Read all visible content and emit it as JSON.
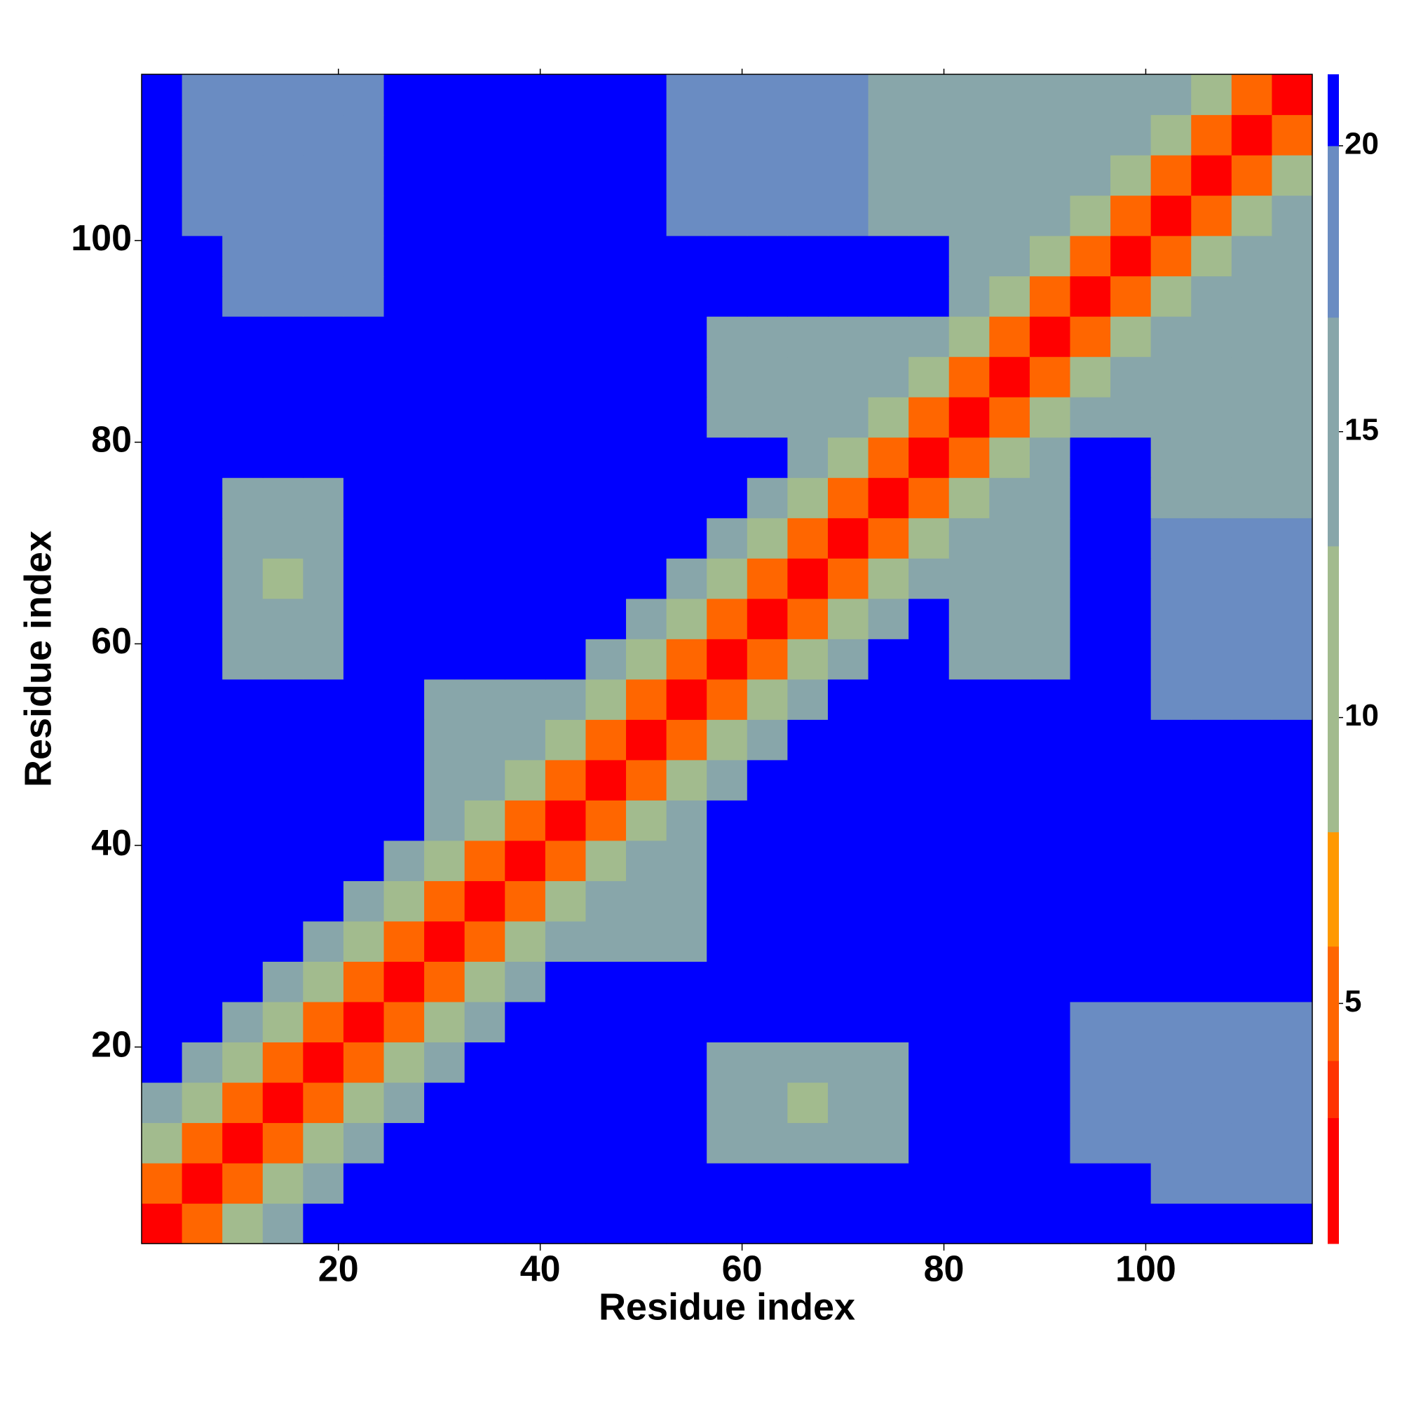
{
  "chart_data": {
    "type": "heatmap",
    "xlabel": "Residue index",
    "ylabel": "Residue index",
    "xbins": [
      0.5,
      4.5,
      8.5,
      12.5,
      16.5,
      20.5,
      24.5,
      28.5,
      32.5,
      36.5,
      40.5,
      44.5,
      48.5,
      52.5,
      56.5,
      60.5,
      64.5,
      68.5,
      72.5,
      76.5,
      80.5,
      84.5,
      88.5,
      92.5,
      96.5,
      100.5,
      104.5,
      108.5,
      112.5,
      116.5
    ],
    "ybins": [
      0.5,
      4.5,
      8.5,
      12.5,
      16.5,
      20.5,
      24.5,
      28.5,
      32.5,
      36.5,
      40.5,
      44.5,
      48.5,
      52.5,
      56.5,
      60.5,
      64.5,
      68.5,
      72.5,
      76.5,
      80.5,
      84.5,
      88.5,
      92.5,
      96.5,
      100.5,
      104.5,
      108.5,
      112.5,
      116.5
    ],
    "xlim": [
      0.5,
      116.5
    ],
    "ylim": [
      0.5,
      116.5
    ],
    "xticks": [
      20,
      40,
      60,
      80,
      100
    ],
    "yticks": [
      20,
      40,
      60,
      80,
      100
    ],
    "clim": [
      0.8,
      21.25
    ],
    "cticks": [
      5,
      10,
      15,
      20
    ],
    "levels": [
      0.8,
      3,
      4,
      6,
      8,
      13,
      17,
      20,
      21.25
    ],
    "colors": [
      "#ff0000",
      "#ff3300",
      "#ff6600",
      "#ff9900",
      "#a2bb8e",
      "#88a6aa",
      "#6a8cc2",
      "#0000ff"
    ],
    "z": [
      [
        2,
        6,
        12,
        17,
        21,
        21,
        21,
        21,
        21,
        21,
        21,
        21,
        21,
        21,
        21,
        21,
        21,
        21,
        21,
        21,
        21,
        21,
        21,
        21,
        21,
        21,
        21,
        21,
        21
      ],
      [
        6,
        2,
        6,
        12,
        17,
        21,
        21,
        21,
        21,
        21,
        21,
        21,
        21,
        21,
        21,
        21,
        21,
        21,
        21,
        21,
        21,
        21,
        21,
        21,
        21,
        19,
        19,
        19,
        19
      ],
      [
        12,
        6,
        2,
        6,
        12,
        17,
        21,
        21,
        21,
        21,
        21,
        21,
        21,
        21,
        14,
        14,
        14,
        14,
        14,
        21,
        21,
        21,
        21,
        19,
        19,
        19,
        19,
        19,
        19
      ],
      [
        17,
        12,
        6,
        2,
        6,
        12,
        17,
        21,
        21,
        21,
        21,
        21,
        21,
        21,
        14,
        14,
        9,
        14,
        14,
        21,
        21,
        21,
        21,
        19,
        19,
        19,
        19,
        19,
        19
      ],
      [
        21,
        17,
        12,
        6,
        2,
        6,
        12,
        17,
        21,
        21,
        21,
        21,
        21,
        21,
        14,
        14,
        14,
        14,
        14,
        21,
        21,
        21,
        21,
        19,
        19,
        19,
        19,
        19,
        19
      ],
      [
        21,
        21,
        17,
        12,
        6,
        2,
        6,
        12,
        17,
        21,
        21,
        21,
        21,
        21,
        21,
        21,
        21,
        21,
        21,
        21,
        21,
        21,
        21,
        19,
        19,
        19,
        19,
        19,
        19
      ],
      [
        21,
        21,
        21,
        17,
        12,
        6,
        2,
        6,
        12,
        17,
        21,
        21,
        21,
        21,
        21,
        21,
        21,
        21,
        21,
        21,
        21,
        21,
        21,
        21,
        21,
        21,
        21,
        21,
        21
      ],
      [
        21,
        21,
        21,
        21,
        17,
        12,
        6,
        2,
        6,
        12,
        17,
        17,
        17,
        17,
        21,
        21,
        21,
        21,
        21,
        21,
        21,
        21,
        21,
        21,
        21,
        21,
        21,
        21,
        21
      ],
      [
        21,
        21,
        21,
        21,
        21,
        17,
        12,
        6,
        2,
        6,
        12,
        17,
        17,
        17,
        21,
        21,
        21,
        21,
        21,
        21,
        21,
        21,
        21,
        21,
        21,
        21,
        21,
        21,
        21
      ],
      [
        21,
        21,
        21,
        21,
        21,
        21,
        17,
        12,
        6,
        2,
        6,
        12,
        17,
        17,
        21,
        21,
        21,
        21,
        21,
        21,
        21,
        21,
        21,
        21,
        21,
        21,
        21,
        21,
        21
      ],
      [
        21,
        21,
        21,
        21,
        21,
        21,
        21,
        17,
        12,
        6,
        2,
        6,
        12,
        17,
        21,
        21,
        21,
        21,
        21,
        21,
        21,
        21,
        21,
        21,
        21,
        21,
        21,
        21,
        21
      ],
      [
        21,
        21,
        21,
        21,
        21,
        21,
        21,
        17,
        17,
        12,
        6,
        2,
        6,
        12,
        17,
        21,
        21,
        21,
        21,
        21,
        21,
        21,
        21,
        21,
        21,
        21,
        21,
        21,
        21
      ],
      [
        21,
        21,
        21,
        21,
        21,
        21,
        21,
        17,
        17,
        17,
        12,
        6,
        2,
        6,
        12,
        17,
        21,
        21,
        21,
        21,
        21,
        21,
        21,
        21,
        21,
        21,
        21,
        21,
        21
      ],
      [
        21,
        21,
        21,
        21,
        21,
        21,
        21,
        17,
        17,
        17,
        17,
        12,
        6,
        2,
        6,
        12,
        17,
        21,
        21,
        21,
        21,
        21,
        21,
        21,
        21,
        19,
        19,
        19,
        19
      ],
      [
        21,
        21,
        14,
        14,
        14,
        21,
        21,
        21,
        21,
        21,
        21,
        17,
        12,
        6,
        2,
        6,
        12,
        17,
        21,
        21,
        16,
        16,
        16,
        21,
        21,
        19,
        19,
        19,
        19
      ],
      [
        21,
        21,
        14,
        14,
        14,
        21,
        21,
        21,
        21,
        21,
        21,
        21,
        17,
        12,
        6,
        2,
        6,
        12,
        17,
        21,
        16,
        16,
        16,
        21,
        21,
        19,
        19,
        19,
        19
      ],
      [
        21,
        21,
        14,
        9,
        14,
        21,
        21,
        21,
        21,
        21,
        21,
        21,
        21,
        17,
        12,
        6,
        2,
        6,
        12,
        17,
        16,
        16,
        16,
        21,
        21,
        19,
        19,
        19,
        19
      ],
      [
        21,
        21,
        14,
        14,
        14,
        21,
        21,
        21,
        21,
        21,
        21,
        21,
        21,
        21,
        17,
        12,
        6,
        2,
        6,
        12,
        16,
        16,
        16,
        21,
        21,
        19,
        19,
        19,
        19
      ],
      [
        21,
        21,
        14,
        14,
        14,
        21,
        21,
        21,
        21,
        21,
        21,
        21,
        21,
        21,
        21,
        17,
        12,
        6,
        2,
        6,
        12,
        16,
        16,
        21,
        21,
        15,
        15,
        15,
        15
      ],
      [
        21,
        21,
        21,
        21,
        21,
        21,
        21,
        21,
        21,
        21,
        21,
        21,
        21,
        21,
        21,
        21,
        17,
        12,
        6,
        2,
        6,
        12,
        17,
        21,
        21,
        15,
        15,
        15,
        15
      ],
      [
        21,
        21,
        21,
        21,
        21,
        21,
        21,
        21,
        21,
        21,
        21,
        21,
        21,
        21,
        16,
        16,
        16,
        16,
        12,
        6,
        2,
        6,
        12,
        14,
        14,
        14,
        15,
        15,
        15
      ],
      [
        21,
        21,
        21,
        21,
        21,
        21,
        21,
        21,
        21,
        21,
        21,
        21,
        21,
        21,
        16,
        16,
        16,
        16,
        16,
        12,
        6,
        2,
        6,
        12,
        14,
        14,
        14,
        15,
        15
      ],
      [
        21,
        21,
        21,
        21,
        21,
        21,
        21,
        21,
        21,
        21,
        21,
        21,
        21,
        21,
        16,
        16,
        16,
        16,
        16,
        17,
        12,
        6,
        2,
        6,
        12,
        14,
        14,
        14,
        15
      ],
      [
        21,
        21,
        19,
        19,
        19,
        19,
        21,
        21,
        21,
        21,
        21,
        21,
        21,
        21,
        21,
        21,
        21,
        21,
        21,
        21,
        14,
        12,
        6,
        2,
        6,
        12,
        14,
        14,
        14
      ],
      [
        21,
        21,
        19,
        19,
        19,
        19,
        21,
        21,
        21,
        21,
        21,
        21,
        21,
        21,
        21,
        21,
        21,
        21,
        21,
        21,
        14,
        14,
        12,
        6,
        2,
        6,
        12,
        14,
        14
      ],
      [
        21,
        19,
        19,
        19,
        19,
        19,
        21,
        21,
        21,
        21,
        21,
        21,
        21,
        19,
        19,
        19,
        19,
        19,
        15,
        15,
        14,
        14,
        14,
        12,
        6,
        2,
        6,
        12,
        14
      ],
      [
        21,
        19,
        19,
        19,
        19,
        19,
        21,
        21,
        21,
        21,
        21,
        21,
        21,
        19,
        19,
        19,
        19,
        19,
        15,
        15,
        15,
        14,
        14,
        14,
        12,
        6,
        2,
        6,
        12
      ],
      [
        21,
        19,
        19,
        19,
        19,
        19,
        21,
        21,
        21,
        21,
        21,
        21,
        21,
        19,
        19,
        19,
        19,
        19,
        15,
        15,
        15,
        15,
        14,
        14,
        14,
        12,
        6,
        2,
        6
      ],
      [
        21,
        19,
        19,
        19,
        19,
        19,
        21,
        21,
        21,
        21,
        21,
        21,
        21,
        19,
        19,
        19,
        19,
        19,
        15,
        15,
        15,
        15,
        15,
        14,
        14,
        14,
        12,
        6,
        2
      ]
    ]
  }
}
